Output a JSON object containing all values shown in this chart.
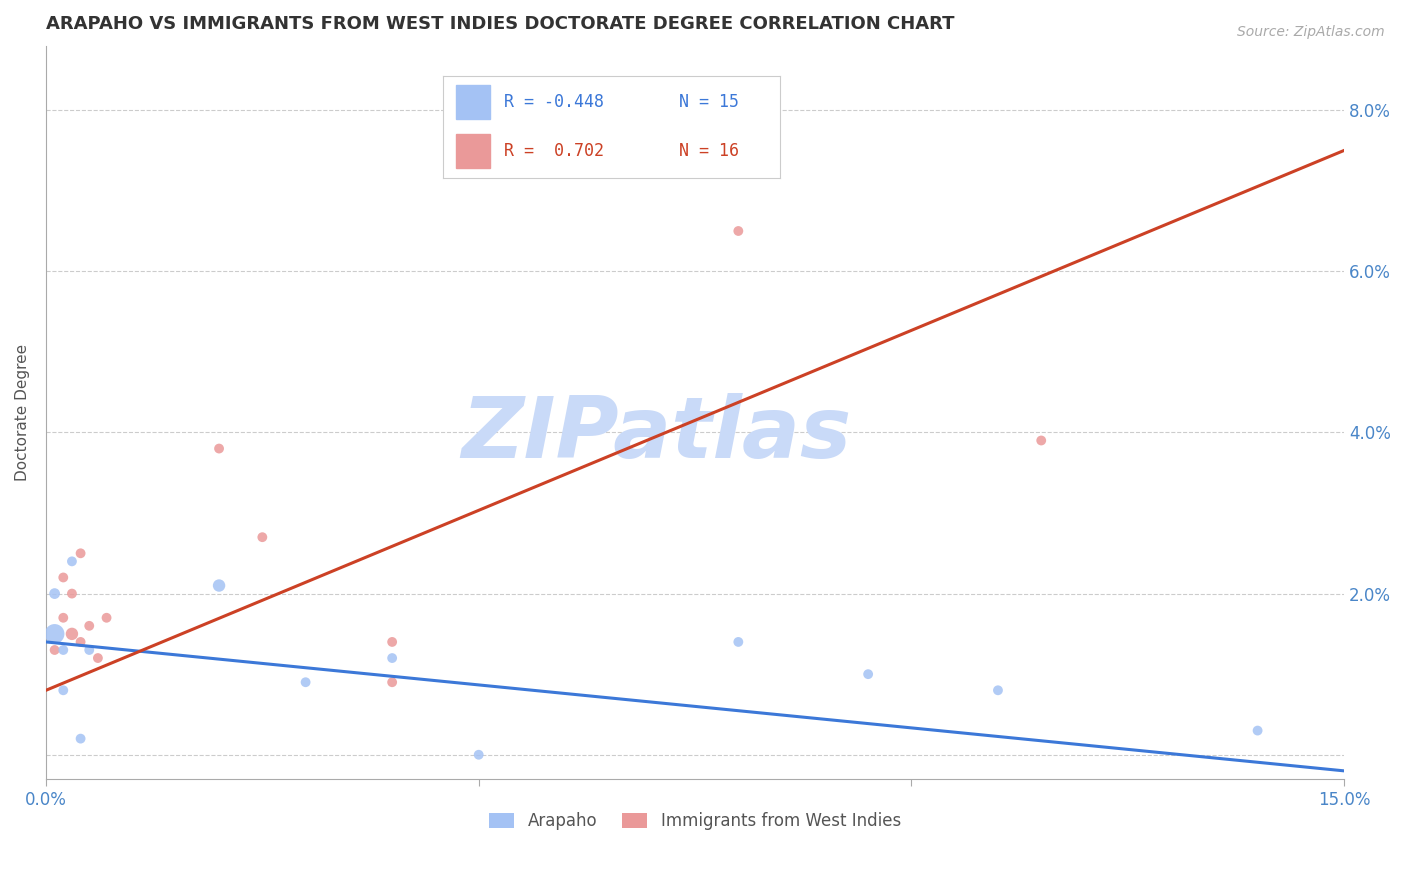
{
  "title": "ARAPAHO VS IMMIGRANTS FROM WEST INDIES DOCTORATE DEGREE CORRELATION CHART",
  "source_text": "Source: ZipAtlas.com",
  "ylabel": "Doctorate Degree",
  "xmin": 0.0,
  "xmax": 0.15,
  "ymin": -0.003,
  "ymax": 0.088,
  "yticks": [
    0.0,
    0.02,
    0.04,
    0.06,
    0.08
  ],
  "ytick_labels": [
    "",
    "2.0%",
    "4.0%",
    "6.0%",
    "8.0%"
  ],
  "xticks": [
    0.0,
    0.05,
    0.1,
    0.15
  ],
  "xtick_labels": [
    "0.0%",
    "",
    "",
    "15.0%"
  ],
  "blue_color": "#a4c2f4",
  "pink_color": "#ea9999",
  "trend_blue": "#3c78d8",
  "trend_pink": "#cc4125",
  "watermark": "ZIPatlas",
  "watermark_color": "#c9daf8",
  "background_color": "#ffffff",
  "blue_x": [
    0.001,
    0.001,
    0.002,
    0.002,
    0.003,
    0.004,
    0.005,
    0.02,
    0.03,
    0.04,
    0.05,
    0.08,
    0.095,
    0.11,
    0.14
  ],
  "blue_y": [
    0.015,
    0.02,
    0.008,
    0.013,
    0.024,
    0.002,
    0.013,
    0.021,
    0.009,
    0.012,
    0.0,
    0.014,
    0.01,
    0.008,
    0.003
  ],
  "blue_size": [
    200,
    60,
    50,
    50,
    50,
    50,
    50,
    80,
    50,
    50,
    50,
    50,
    50,
    50,
    50
  ],
  "pink_x": [
    0.001,
    0.002,
    0.002,
    0.003,
    0.003,
    0.004,
    0.004,
    0.005,
    0.006,
    0.007,
    0.02,
    0.025,
    0.04,
    0.04,
    0.08,
    0.115
  ],
  "pink_y": [
    0.013,
    0.017,
    0.022,
    0.015,
    0.02,
    0.014,
    0.025,
    0.016,
    0.012,
    0.017,
    0.038,
    0.027,
    0.014,
    0.009,
    0.065,
    0.039
  ],
  "pink_size": [
    50,
    50,
    50,
    80,
    50,
    50,
    50,
    50,
    50,
    50,
    50,
    50,
    50,
    50,
    50,
    50
  ],
  "blue_trend_x0": 0.0,
  "blue_trend_y0": 0.014,
  "blue_trend_x1": 0.15,
  "blue_trend_y1": -0.002,
  "pink_trend_x0": 0.0,
  "pink_trend_y0": 0.008,
  "pink_trend_x1": 0.15,
  "pink_trend_y1": 0.075
}
